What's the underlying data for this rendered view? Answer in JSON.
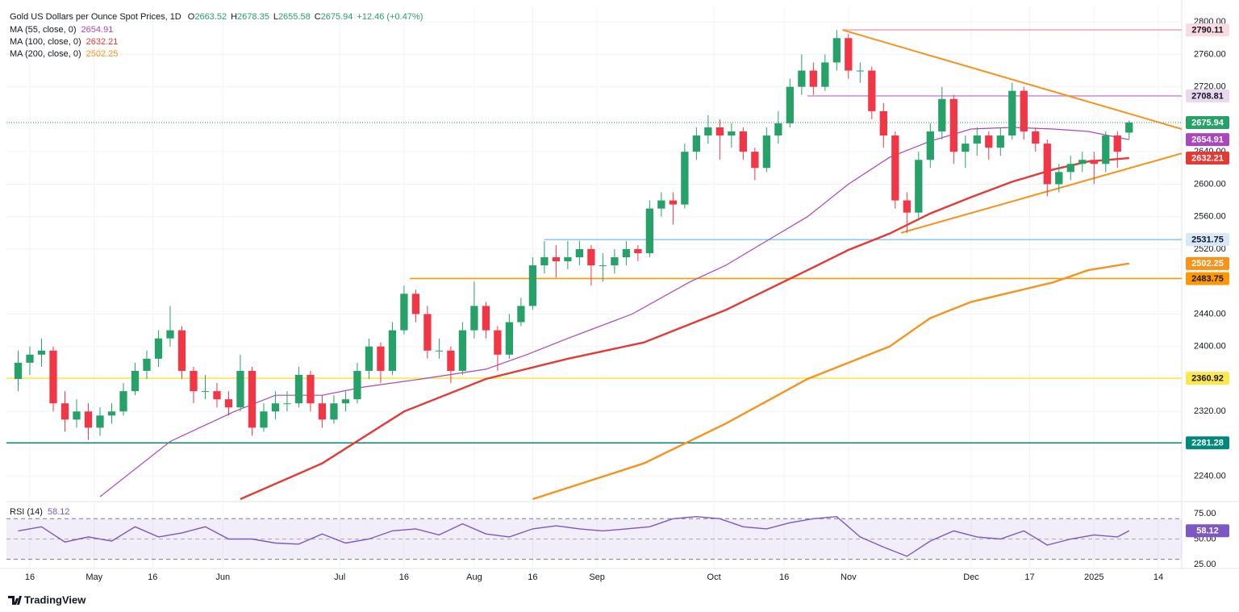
{
  "chart_data": [
    {
      "type": "candlestick",
      "title": "Gold US Dollars per Ounce Spot Prices, 1D",
      "ohlc_labels": [
        "O",
        "H",
        "L",
        "C"
      ],
      "change": "+12.46 (+0.47%)",
      "up_color": "#26a269",
      "down_color": "#f23645",
      "x": [
        1,
        3,
        5,
        7,
        9,
        11,
        13,
        15,
        17,
        19,
        21,
        23,
        25,
        27,
        29,
        31,
        33,
        35,
        37,
        39,
        41,
        43,
        45,
        47,
        49,
        51,
        53,
        55,
        57,
        59,
        61,
        63,
        65,
        67,
        69,
        71,
        73,
        75,
        77,
        79,
        81,
        83,
        85,
        87,
        89,
        91,
        93,
        95,
        97,
        99,
        101,
        103,
        105,
        107,
        109,
        111,
        113,
        115,
        117,
        119,
        121,
        123,
        125,
        127,
        129,
        131,
        133,
        135,
        137,
        139,
        141,
        143,
        145,
        147,
        149,
        151,
        153,
        155,
        157,
        159,
        161,
        163,
        165,
        167,
        169,
        171,
        173,
        175,
        177,
        179,
        181,
        183,
        185,
        187,
        189,
        191
      ],
      "ohlc": [
        [
          2360,
          2395,
          2345,
          2380
        ],
        [
          2380,
          2400,
          2365,
          2390
        ],
        [
          2390,
          2410,
          2375,
          2395
        ],
        [
          2395,
          2400,
          2320,
          2330
        ],
        [
          2330,
          2345,
          2295,
          2310
        ],
        [
          2310,
          2335,
          2300,
          2320
        ],
        [
          2320,
          2330,
          2285,
          2300
        ],
        [
          2300,
          2325,
          2290,
          2315
        ],
        [
          2315,
          2330,
          2305,
          2320
        ],
        [
          2320,
          2355,
          2315,
          2345
        ],
        [
          2345,
          2380,
          2340,
          2370
        ],
        [
          2370,
          2395,
          2360,
          2385
        ],
        [
          2385,
          2420,
          2375,
          2410
        ],
        [
          2410,
          2450,
          2400,
          2420
        ],
        [
          2420,
          2425,
          2360,
          2370
        ],
        [
          2370,
          2375,
          2330,
          2345
        ],
        [
          2345,
          2365,
          2335,
          2345
        ],
        [
          2345,
          2355,
          2325,
          2335
        ],
        [
          2335,
          2345,
          2315,
          2325
        ],
        [
          2325,
          2390,
          2320,
          2370
        ],
        [
          2370,
          2375,
          2290,
          2300
        ],
        [
          2300,
          2330,
          2295,
          2320
        ],
        [
          2320,
          2345,
          2310,
          2330
        ],
        [
          2330,
          2345,
          2320,
          2330
        ],
        [
          2330,
          2375,
          2325,
          2365
        ],
        [
          2365,
          2370,
          2320,
          2330
        ],
        [
          2330,
          2340,
          2300,
          2310
        ],
        [
          2310,
          2340,
          2305,
          2330
        ],
        [
          2330,
          2345,
          2320,
          2335
        ],
        [
          2335,
          2380,
          2330,
          2370
        ],
        [
          2370,
          2410,
          2360,
          2400
        ],
        [
          2400,
          2405,
          2355,
          2370
        ],
        [
          2370,
          2430,
          2365,
          2420
        ],
        [
          2420,
          2475,
          2415,
          2465
        ],
        [
          2465,
          2470,
          2430,
          2440
        ],
        [
          2440,
          2450,
          2385,
          2395
        ],
        [
          2395,
          2410,
          2385,
          2395
        ],
        [
          2395,
          2400,
          2355,
          2370
        ],
        [
          2370,
          2430,
          2365,
          2420
        ],
        [
          2420,
          2480,
          2410,
          2450
        ],
        [
          2450,
          2455,
          2410,
          2420
        ],
        [
          2420,
          2425,
          2370,
          2390
        ],
        [
          2390,
          2440,
          2385,
          2430
        ],
        [
          2430,
          2460,
          2425,
          2450
        ],
        [
          2450,
          2510,
          2445,
          2500
        ],
        [
          2500,
          2530,
          2490,
          2510
        ],
        [
          2510,
          2525,
          2485,
          2505
        ],
        [
          2505,
          2530,
          2495,
          2510
        ],
        [
          2510,
          2530,
          2500,
          2520
        ],
        [
          2520,
          2525,
          2475,
          2500
        ],
        [
          2500,
          2515,
          2480,
          2500
        ],
        [
          2500,
          2520,
          2490,
          2510
        ],
        [
          2510,
          2530,
          2500,
          2520
        ],
        [
          2520,
          2525,
          2505,
          2515
        ],
        [
          2515,
          2580,
          2510,
          2570
        ],
        [
          2570,
          2590,
          2560,
          2580
        ],
        [
          2580,
          2590,
          2550,
          2575
        ],
        [
          2575,
          2650,
          2570,
          2640
        ],
        [
          2640,
          2670,
          2630,
          2660
        ],
        [
          2660,
          2685,
          2650,
          2670
        ],
        [
          2670,
          2680,
          2630,
          2660
        ],
        [
          2660,
          2675,
          2645,
          2665
        ],
        [
          2665,
          2670,
          2630,
          2640
        ],
        [
          2640,
          2645,
          2605,
          2620
        ],
        [
          2620,
          2670,
          2615,
          2660
        ],
        [
          2660,
          2690,
          2650,
          2675
        ],
        [
          2675,
          2730,
          2670,
          2720
        ],
        [
          2720,
          2760,
          2710,
          2740
        ],
        [
          2740,
          2750,
          2710,
          2720
        ],
        [
          2720,
          2760,
          2715,
          2750
        ],
        [
          2750,
          2790,
          2740,
          2780
        ],
        [
          2780,
          2785,
          2730,
          2740
        ],
        [
          2740,
          2750,
          2725,
          2740
        ],
        [
          2740,
          2745,
          2680,
          2690
        ],
        [
          2690,
          2700,
          2645,
          2660
        ],
        [
          2660,
          2665,
          2570,
          2580
        ],
        [
          2580,
          2590,
          2540,
          2565
        ],
        [
          2565,
          2640,
          2555,
          2630
        ],
        [
          2630,
          2675,
          2620,
          2665
        ],
        [
          2665,
          2720,
          2655,
          2705
        ],
        [
          2705,
          2710,
          2625,
          2640
        ],
        [
          2640,
          2660,
          2620,
          2650
        ],
        [
          2650,
          2670,
          2635,
          2660
        ],
        [
          2660,
          2665,
          2630,
          2645
        ],
        [
          2645,
          2670,
          2635,
          2660
        ],
        [
          2660,
          2725,
          2655,
          2715
        ],
        [
          2715,
          2720,
          2655,
          2665
        ],
        [
          2665,
          2670,
          2640,
          2650
        ],
        [
          2650,
          2655,
          2585,
          2600
        ],
        [
          2600,
          2625,
          2590,
          2615
        ],
        [
          2615,
          2635,
          2605,
          2625
        ],
        [
          2625,
          2640,
          2615,
          2630
        ],
        [
          2630,
          2640,
          2600,
          2625
        ],
        [
          2625,
          2665,
          2615,
          2660
        ],
        [
          2660,
          2665,
          2620,
          2640
        ],
        [
          2663.52,
          2678.35,
          2655.58,
          2675.94
        ]
      ],
      "moving_averages": [
        {
          "name": "MA (55, close, 0)",
          "color": "#ab47bc",
          "x": [
            15,
            27,
            38,
            45,
            53,
            60,
            70,
            81,
            88,
            95,
            106,
            116,
            122,
            129,
            136,
            143,
            150,
            157,
            164,
            171,
            178,
            184,
            191
          ],
          "values": [
            2215,
            2283,
            2320,
            2340,
            2340,
            2350,
            2360,
            2372,
            2390,
            2410,
            2440,
            2480,
            2500,
            2530,
            2560,
            2600,
            2633,
            2653,
            2668,
            2670,
            2668,
            2665,
            2654.91
          ]
        },
        {
          "name": "MA (100, close, 0)",
          "color": "#e53935",
          "x": [
            39,
            53,
            67,
            81,
            95,
            108,
            122,
            136,
            143,
            150,
            157,
            164,
            171,
            178,
            184,
            191
          ],
          "values": [
            2212,
            2256,
            2320,
            2360,
            2385,
            2405,
            2445,
            2494,
            2519,
            2539,
            2564,
            2584,
            2603,
            2618,
            2628,
            2632.21
          ]
        },
        {
          "name": "MA (200, close, 0)",
          "color": "#f7931a",
          "x": [
            89,
            108,
            122,
            136,
            143,
            150,
            157,
            164,
            171,
            178,
            184,
            191
          ],
          "values": [
            2212,
            2256,
            2305,
            2360,
            2380,
            2400,
            2435,
            2455,
            2467,
            2479,
            2494,
            2502.25
          ]
        }
      ],
      "levels": [
        {
          "value": 2790.11,
          "color": "#f7a8b8",
          "label_bg": "#fadbe2",
          "start": 142
        },
        {
          "value": 2708.81,
          "color": "#ce93d8",
          "label_bg": "#ead7f0",
          "start": 136
        },
        {
          "value": 2531.75,
          "color": "#90caf9",
          "label_bg": "#d7e9f9",
          "start": 91
        },
        {
          "value": 2483.75,
          "color": "#ff9800",
          "label_bg": "#ff9800",
          "start": 68
        },
        {
          "value": 2360.92,
          "color": "#fde74c",
          "label_bg": "#fde74c",
          "start": -1
        },
        {
          "value": 2281.28,
          "color": "#00897b",
          "label_bg": "#00897b",
          "start": -1
        }
      ],
      "trendlines": [
        {
          "color": "#f7931a",
          "x": [
            142,
            200
          ],
          "values": [
            2790,
            2668
          ]
        },
        {
          "color": "#f7931a",
          "x": [
            152,
            200
          ],
          "values": [
            2540,
            2638
          ]
        }
      ],
      "xlim": [
        -1,
        200
      ],
      "xticks": [
        {
          "value": 3,
          "label": "16"
        },
        {
          "value": 14,
          "label": "May"
        },
        {
          "value": 24,
          "label": "16"
        },
        {
          "value": 36,
          "label": "Jun"
        },
        {
          "value": 56,
          "label": "Jul"
        },
        {
          "value": 67,
          "label": "16"
        },
        {
          "value": 79,
          "label": "Aug"
        },
        {
          "value": 89,
          "label": "16"
        },
        {
          "value": 100,
          "label": "Sep"
        },
        {
          "value": 120,
          "label": "Oct"
        },
        {
          "value": 132,
          "label": "16"
        },
        {
          "value": 143,
          "label": "Nov"
        },
        {
          "value": 164,
          "label": "Dec"
        },
        {
          "value": 174,
          "label": "17"
        },
        {
          "value": 185,
          "label": "2025"
        },
        {
          "value": 196,
          "label": "14"
        }
      ],
      "ylim": [
        2211,
        2819
      ],
      "yticks": [
        {
          "value": 2240,
          "label": "2240.00"
        },
        {
          "value": 2320,
          "label": "2320.00"
        },
        {
          "value": 2400,
          "label": "2400.00"
        },
        {
          "value": 2440,
          "label": "2440.00"
        },
        {
          "value": 2520,
          "label": "2520.00"
        },
        {
          "value": 2560,
          "label": "2560.00"
        },
        {
          "value": 2600,
          "label": "2600.00"
        },
        {
          "value": 2640,
          "label": "2640.00"
        },
        {
          "value": 2720,
          "label": "2720.00"
        },
        {
          "value": 2760,
          "label": "2760.00"
        },
        {
          "value": 2800,
          "label": "2800.00"
        }
      ],
      "grid": true
    },
    {
      "type": "line",
      "title": "RSI (14)",
      "series": [
        {
          "name": "RSI (14)",
          "color": "#7e57c2",
          "x": [
            1,
            5,
            9,
            13,
            17,
            21,
            25,
            29,
            33,
            37,
            41,
            45,
            49,
            53,
            57,
            61,
            65,
            69,
            73,
            77,
            81,
            85,
            89,
            93,
            97,
            101,
            105,
            109,
            113,
            117,
            121,
            125,
            129,
            133,
            137,
            141,
            145,
            149,
            153,
            157,
            161,
            165,
            169,
            173,
            177,
            181,
            185,
            189,
            191
          ],
          "values": [
            58,
            62,
            47,
            52,
            48,
            62,
            52,
            56,
            62,
            50,
            50,
            46,
            45,
            55,
            46,
            50,
            58,
            60,
            54,
            65,
            55,
            52,
            60,
            63,
            60,
            58,
            60,
            62,
            70,
            72,
            70,
            62,
            60,
            66,
            70,
            72,
            52,
            42,
            33,
            48,
            58,
            52,
            50,
            58,
            44,
            50,
            54,
            52,
            58.12
          ]
        }
      ],
      "bands": [
        30,
        70
      ],
      "midline": 50,
      "band_color": "#7e57c2",
      "xlim": [
        -1,
        200
      ],
      "ylim": [
        21,
        84.5
      ],
      "yticks": [
        {
          "value": 75,
          "label": "75.00"
        },
        {
          "value": 50,
          "label": "50.00"
        },
        {
          "value": 25,
          "label": "25.00"
        }
      ]
    }
  ],
  "branding": "TradingView"
}
